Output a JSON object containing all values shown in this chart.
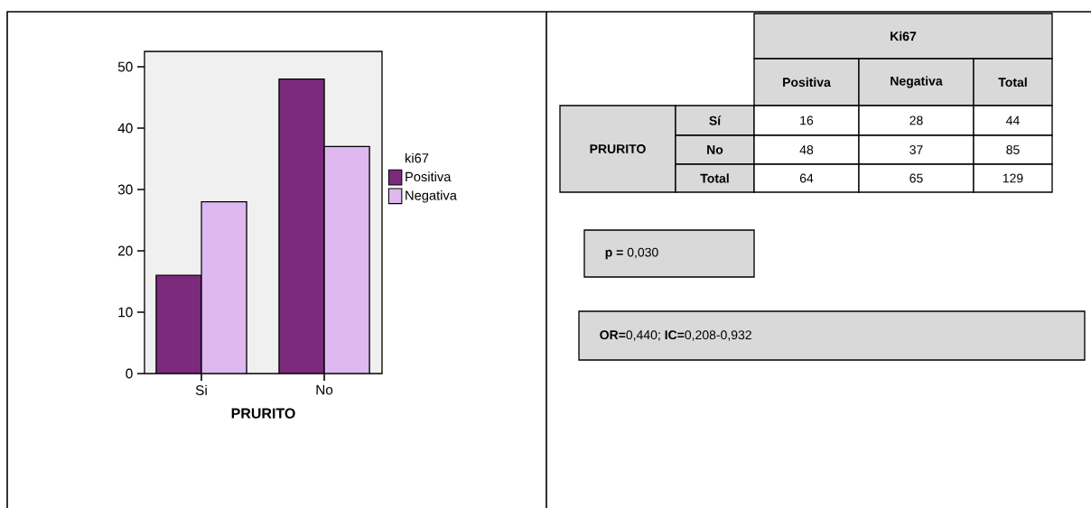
{
  "chart_data": [
    {
      "type": "bar",
      "categories": [
        "Si",
        "No"
      ],
      "xlabel": "PRURITO",
      "legend_title": "ki67",
      "legend": "right",
      "series": [
        {
          "name": "Positiva",
          "color": "#7b2a7c",
          "values": [
            16,
            48
          ]
        },
        {
          "name": "Negativa",
          "color": "#dfb8f0",
          "values": [
            28,
            37
          ]
        }
      ],
      "ylim": [
        0,
        52.5
      ],
      "yticks": [
        0,
        10,
        20,
        30,
        40,
        50
      ]
    },
    {
      "type": "other",
      "xlabel": "Ki67",
      "categories": [
        "Positiva",
        "Negativa",
        "Total"
      ],
      "ylabel": "PRURITO",
      "y_categories": [
        "Sí",
        "No",
        "Total"
      ],
      "cell_labels": [
        [
          "16",
          "28",
          "44"
        ],
        [
          "48",
          "37",
          "85"
        ],
        [
          "64",
          "65",
          "129"
        ]
      ],
      "annotations": [
        "**p =** 0,030",
        "**OR=**0,440; **IC=**0,208-0,932"
      ]
    }
  ]
}
